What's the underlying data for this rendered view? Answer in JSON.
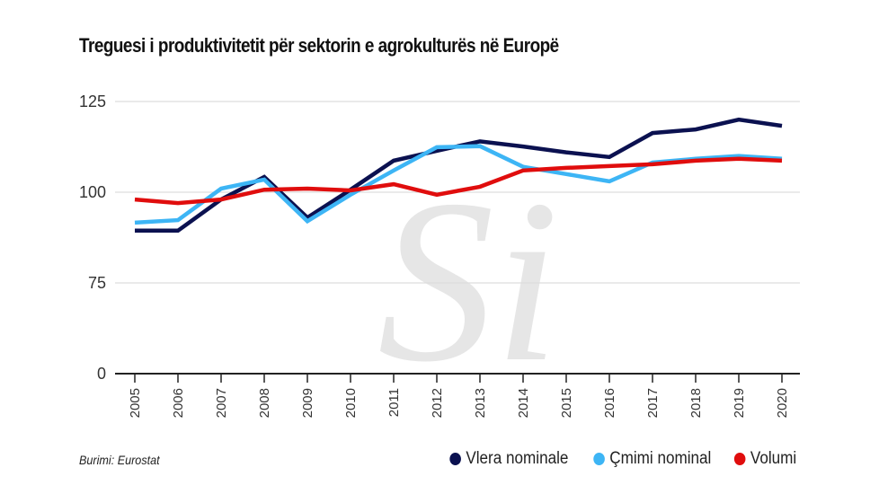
{
  "chart_data": {
    "type": "line",
    "title": "Treguesi i produktivitetit për sektorin e agrokulturës në Europë",
    "xlabel": "",
    "ylabel": "",
    "x": [
      "2005",
      "2006",
      "2007",
      "2008",
      "2009",
      "2010",
      "2011",
      "2012",
      "2013",
      "2014",
      "2015",
      "2016",
      "2017",
      "2018",
      "2019",
      "2020"
    ],
    "yticks": [
      "0",
      "75",
      "100",
      "125"
    ],
    "ylim": [
      75,
      125
    ],
    "axis_break": "0 to 75",
    "grid": true,
    "legend_position": "bottom-right",
    "series": [
      {
        "name": "Vlera nominale",
        "color": "#0b1150",
        "values": [
          89.4,
          89.4,
          98,
          104.2,
          93,
          100.7,
          108.7,
          111.4,
          114,
          112.6,
          111,
          109.7,
          116.3,
          117.3,
          120,
          118.3
        ]
      },
      {
        "name": "Çmimi nominal",
        "color": "#3db5f5",
        "values": [
          91.6,
          92.3,
          101,
          103.5,
          92,
          99.3,
          106,
          112.4,
          112.7,
          107,
          105,
          103,
          108.2,
          109.2,
          110,
          109.2
        ]
      },
      {
        "name": "Volumi",
        "color": "#e00d0d",
        "values": [
          98,
          97,
          98,
          100.7,
          101,
          100.5,
          102.2,
          99.3,
          101.5,
          106,
          106.7,
          107.2,
          107.7,
          108.7,
          109.2,
          108.7
        ]
      }
    ]
  },
  "source": "Burimi: Eurostat",
  "watermark": "Si"
}
